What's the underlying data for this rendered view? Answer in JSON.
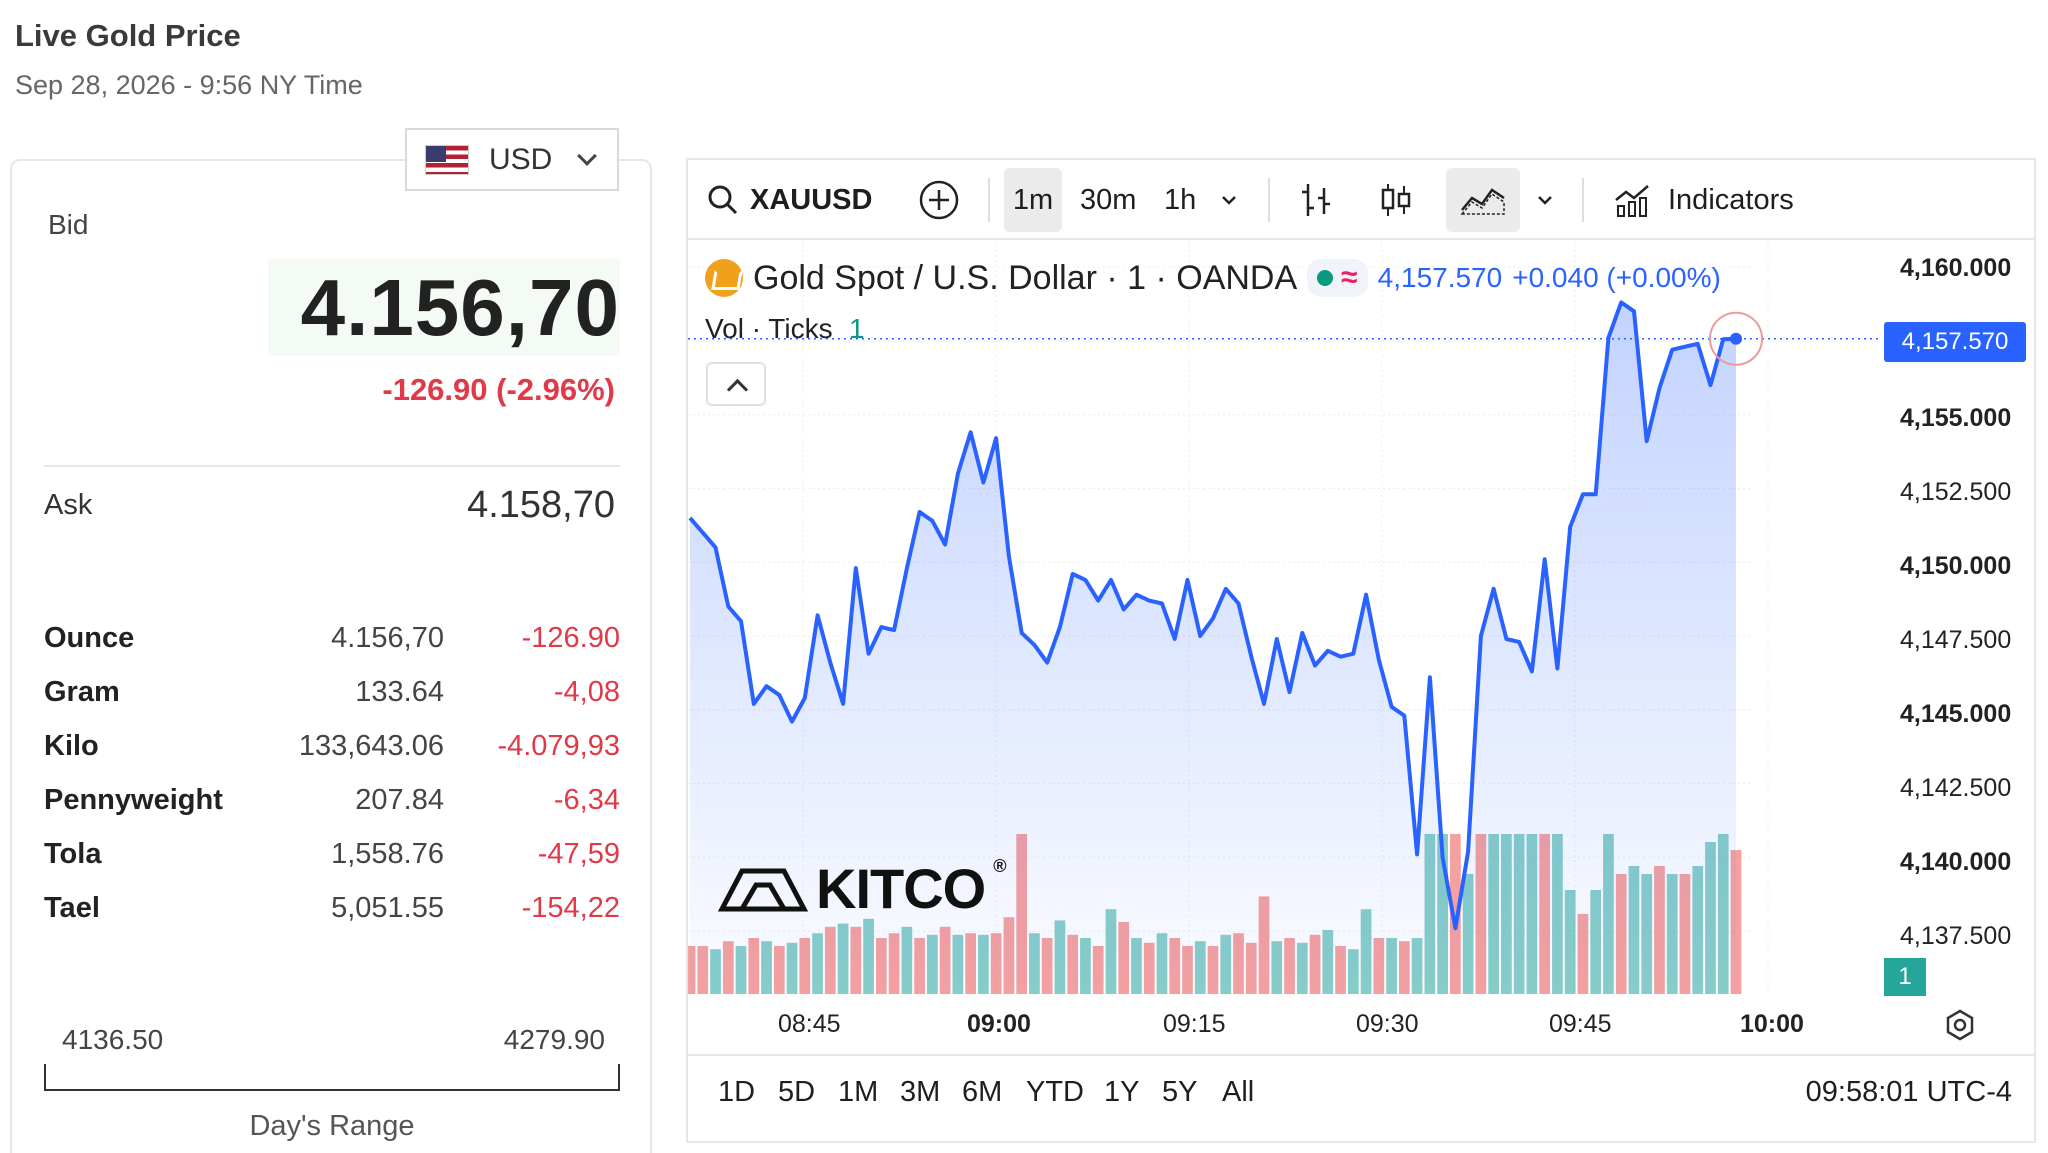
{
  "header": {
    "title": "Live Gold Price",
    "subtitle": "Sep 28, 2026 - 9:56 NY Time"
  },
  "currency": {
    "selected": "USD",
    "flag_icon": "us-flag-icon"
  },
  "quote": {
    "bid_label": "Bid",
    "bid_value": "4.156,70",
    "bid_change": "-126.90 (-2.96%)",
    "ask_label": "Ask",
    "ask_value": "4.158,70",
    "change_color": "#e03a48",
    "bid_bg": "#f4fbf4"
  },
  "units": [
    {
      "name": "Ounce",
      "price": "4.156,70",
      "change": "-126.90"
    },
    {
      "name": "Gram",
      "price": "133.64",
      "change": "-4,08"
    },
    {
      "name": "Kilo",
      "price": "133,643.06",
      "change": "-4.079,93"
    },
    {
      "name": "Pennyweight",
      "price": "207.84",
      "change": "-6,34"
    },
    {
      "name": "Tola",
      "price": "1,558.76",
      "change": "-47,59"
    },
    {
      "name": "Tael",
      "price": "5,051.55",
      "change": "-154,22"
    }
  ],
  "day_range": {
    "low": "4136.50",
    "high": "4279.90",
    "label": "Day's Range"
  },
  "toolbar": {
    "symbol": "XAUUSD",
    "intervals": [
      "1m",
      "30m",
      "1h"
    ],
    "active_interval": "1m",
    "indicators_label": "Indicators"
  },
  "legend": {
    "instrument": "Gold Spot / U.S. Dollar · 1 · OANDA",
    "last": "4,157.570",
    "change": "+0.040 (+0.00%)",
    "vol_label": "Vol · Ticks",
    "vol_value": "1"
  },
  "logo_text": "KITCO",
  "range_buttons": [
    "1D",
    "5D",
    "1M",
    "3M",
    "6M",
    "YTD",
    "1Y",
    "5Y",
    "All"
  ],
  "clock": "09:58:01 UTC-4",
  "last_price_tag": "4,157.570",
  "volume_tag": "1",
  "chart_data": {
    "type": "area",
    "line_color": "#2962ff",
    "up_volume_color": "#26a69a",
    "down_volume_color": "#ef5350",
    "y_ticks": [
      "4,160.000",
      "4,157.500",
      "4,155.000",
      "4,152.500",
      "4,150.000",
      "4,147.500",
      "4,145.000",
      "4,142.500",
      "4,140.000",
      "4,137.500"
    ],
    "x_ticks": [
      "08:45",
      "09:00",
      "09:15",
      "09:30",
      "09:45",
      "10:00"
    ],
    "ylim": [
      4136.5,
      4160.5
    ],
    "price_start_minute": 0,
    "prices": [
      4151.5,
      4151.0,
      4150.5,
      4148.5,
      4148.0,
      4145.2,
      4145.8,
      4145.5,
      4144.6,
      4145.4,
      4148.2,
      4146.6,
      4145.2,
      4149.8,
      4146.9,
      4147.8,
      4147.7,
      4149.8,
      4151.7,
      4151.4,
      4150.6,
      4153.0,
      4154.4,
      4152.7,
      4154.2,
      4150.2,
      4147.6,
      4147.2,
      4146.6,
      4147.8,
      4149.6,
      4149.4,
      4148.7,
      4149.4,
      4148.4,
      4148.9,
      4148.7,
      4148.6,
      4147.4,
      4149.4,
      4147.5,
      4148.1,
      4149.1,
      4148.6,
      4146.8,
      4145.2,
      4147.4,
      4145.6,
      4147.6,
      4146.5,
      4147.0,
      4146.8,
      4146.9,
      4148.9,
      4146.7,
      4145.1,
      4144.8,
      4140.1,
      4146.1,
      4140.0,
      4137.6,
      4140.2,
      4147.5,
      4149.1,
      4147.4,
      4147.3,
      4146.3,
      4150.1,
      4146.4,
      4151.2,
      4152.3,
      4152.3,
      4157.6,
      4158.8,
      4158.5,
      4154.1,
      4155.9,
      4157.2,
      4157.3,
      4157.4,
      4156.0,
      4157.55,
      4157.57
    ],
    "volumes": [
      0.3,
      0.3,
      0.28,
      0.33,
      0.3,
      0.35,
      0.33,
      0.3,
      0.32,
      0.35,
      0.38,
      0.42,
      0.44,
      0.42,
      0.47,
      0.35,
      0.38,
      0.42,
      0.35,
      0.37,
      0.42,
      0.37,
      0.38,
      0.37,
      0.38,
      0.48,
      1.0,
      0.38,
      0.35,
      0.46,
      0.37,
      0.35,
      0.3,
      0.53,
      0.45,
      0.35,
      0.32,
      0.38,
      0.35,
      0.3,
      0.33,
      0.3,
      0.37,
      0.38,
      0.32,
      0.61,
      0.33,
      0.35,
      0.32,
      0.37,
      0.4,
      0.3,
      0.28,
      0.53,
      0.35,
      0.35,
      0.33,
      0.35,
      1.0,
      1.0,
      1.0,
      0.75,
      1.0,
      1.0,
      1.0,
      1.0,
      1.0,
      1.0,
      1.0,
      0.65,
      0.5,
      0.65,
      1.0,
      0.75,
      0.8,
      0.75,
      0.8,
      0.75,
      0.75,
      0.8,
      0.95,
      1.0,
      0.9
    ],
    "volume_up": [
      false,
      false,
      true,
      false,
      true,
      false,
      true,
      false,
      true,
      false,
      true,
      false,
      true,
      false,
      true,
      false,
      false,
      true,
      false,
      true,
      false,
      true,
      false,
      true,
      false,
      false,
      false,
      true,
      false,
      true,
      false,
      true,
      false,
      true,
      false,
      true,
      false,
      true,
      false,
      false,
      true,
      false,
      true,
      false,
      false,
      false,
      true,
      false,
      true,
      false,
      true,
      false,
      true,
      true,
      false,
      true,
      false,
      true,
      true,
      true,
      false,
      true,
      false,
      true,
      true,
      true,
      true,
      false,
      true,
      true,
      false,
      true,
      true,
      false,
      true,
      true,
      false,
      true,
      false,
      true,
      true,
      true,
      false
    ]
  }
}
